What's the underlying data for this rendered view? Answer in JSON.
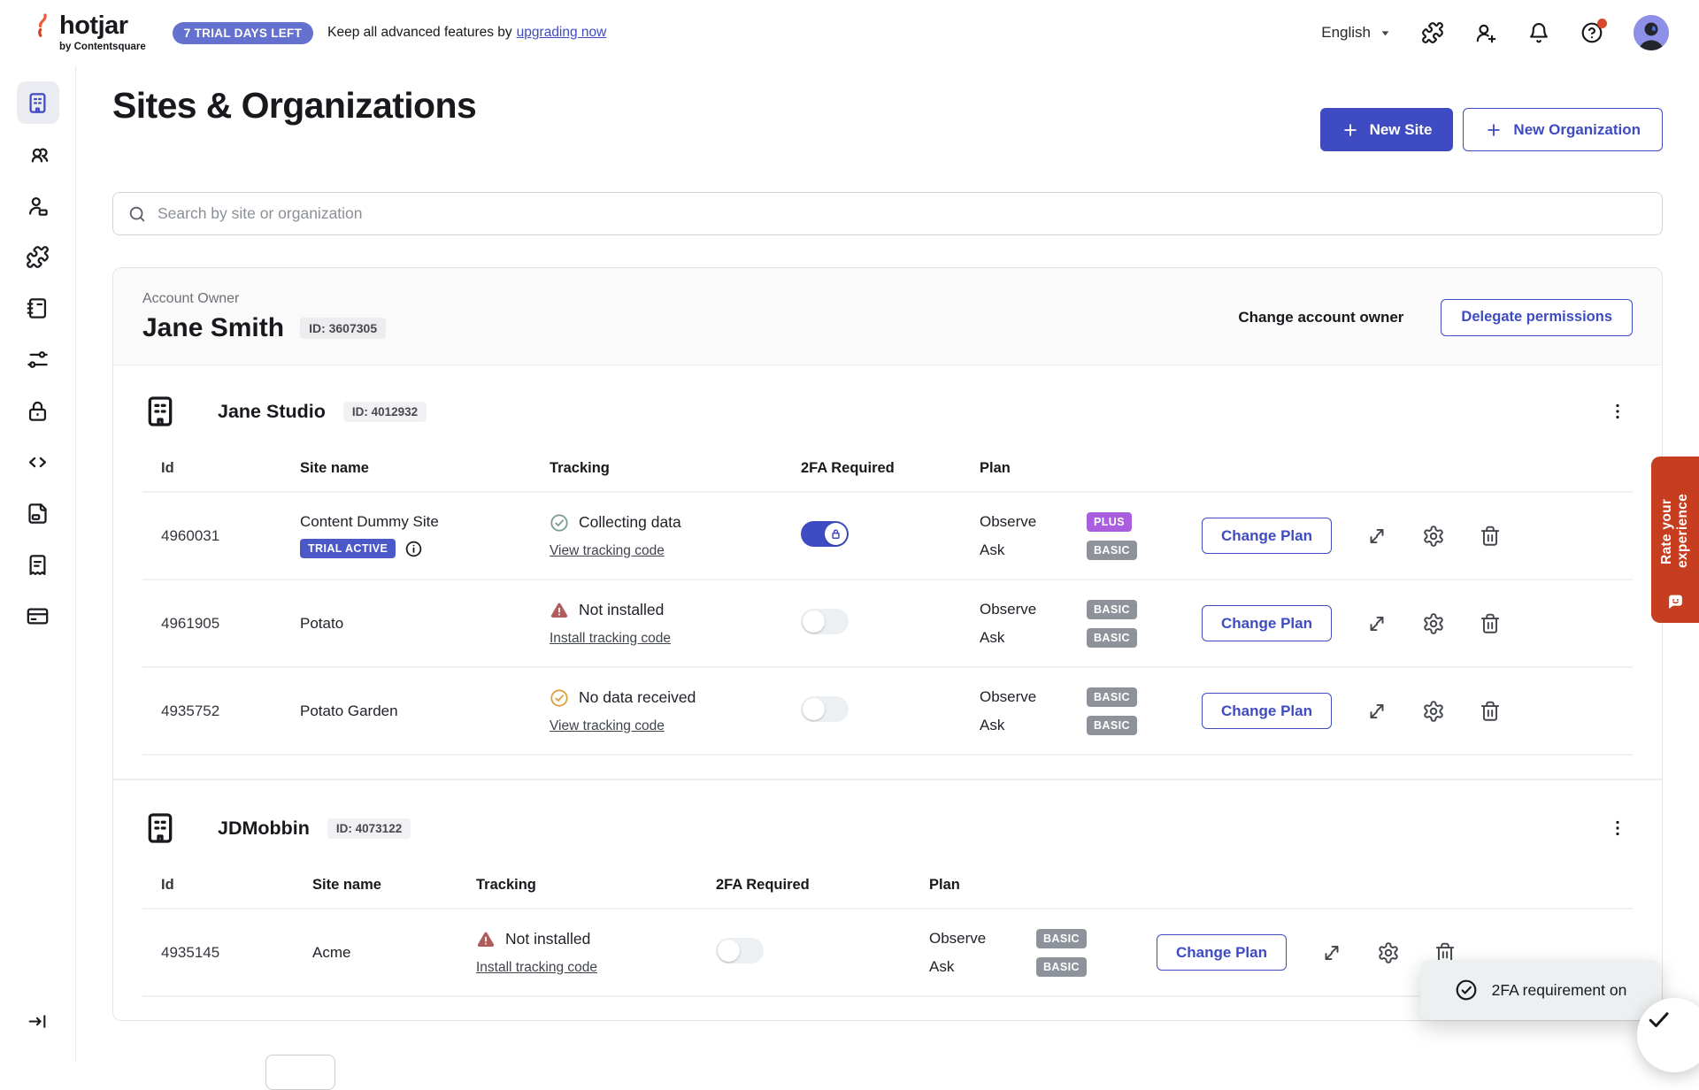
{
  "colors": {
    "accent": "#3e4bc2",
    "trial_badge_bg": "#6471ce",
    "site_badge_bg": "#4b58c8",
    "plus_badge_bg": "#a95ee0",
    "basic_badge_bg": "#8e939b",
    "warning": "#b05c5c",
    "success": "#7d9b8e",
    "no_data": "#df9f3f",
    "rate_tab_bg": "#c63d20",
    "toast_bg": "#edf0f1",
    "avatar_bg": "#8d90e6",
    "help_dot": "#d6492b"
  },
  "topbar": {
    "brand_name": "hotjar",
    "brand_subtitle": "by Contentsquare",
    "trial_badge": "7 TRIAL DAYS LEFT",
    "trial_message": "Keep all advanced features by",
    "trial_link": "upgrading now",
    "language": "English"
  },
  "page": {
    "title": "Sites & Organizations",
    "new_site": "New Site",
    "new_organization": "New Organization",
    "search_placeholder": "Search by site or organization"
  },
  "account_owner": {
    "label": "Account Owner",
    "name": "Jane Smith",
    "id": "ID: 3607305",
    "change_owner": "Change account owner",
    "delegate": "Delegate permissions"
  },
  "table_headers": {
    "id": "Id",
    "site_name": "Site name",
    "tracking": "Tracking",
    "twofa": "2FA Required",
    "plan": "Plan"
  },
  "organizations": [
    {
      "name": "Jane Studio",
      "id": "ID: 4012932",
      "sites": [
        {
          "id": "4960031",
          "name": "Content Dummy Site",
          "badge": "TRIAL ACTIVE",
          "tracking_status": "Collecting data",
          "tracking_state": "collecting",
          "tracking_link": "View tracking code",
          "twofa_on": true,
          "plans": [
            {
              "product": "Observe",
              "tier": "PLUS"
            },
            {
              "product": "Ask",
              "tier": "BASIC"
            }
          ],
          "change_plan": "Change Plan"
        },
        {
          "id": "4961905",
          "name": "Potato",
          "badge": null,
          "tracking_status": "Not installed",
          "tracking_state": "not-installed",
          "tracking_link": "Install tracking code",
          "twofa_on": false,
          "plans": [
            {
              "product": "Observe",
              "tier": "BASIC"
            },
            {
              "product": "Ask",
              "tier": "BASIC"
            }
          ],
          "change_plan": "Change Plan"
        },
        {
          "id": "4935752",
          "name": "Potato Garden",
          "badge": null,
          "tracking_status": "No data received",
          "tracking_state": "no-data",
          "tracking_link": "View tracking code",
          "twofa_on": false,
          "plans": [
            {
              "product": "Observe",
              "tier": "BASIC"
            },
            {
              "product": "Ask",
              "tier": "BASIC"
            }
          ],
          "change_plan": "Change Plan"
        }
      ]
    },
    {
      "name": "JDMobbin",
      "id": "ID: 4073122",
      "sites": [
        {
          "id": "4935145",
          "name": "Acme",
          "badge": null,
          "tracking_status": "Not installed",
          "tracking_state": "not-installed",
          "tracking_link": "Install tracking code",
          "twofa_on": false,
          "plans": [
            {
              "product": "Observe",
              "tier": "BASIC"
            },
            {
              "product": "Ask",
              "tier": "BASIC"
            }
          ],
          "change_plan": "Change Plan"
        }
      ]
    }
  ],
  "toast": {
    "message": "2FA requirement on"
  },
  "rate_tab": {
    "label": "Rate your experience"
  },
  "sidebar": {
    "items": [
      "sites-organizations",
      "team-members",
      "user-management",
      "integrations",
      "organization-directory",
      "preferences",
      "security",
      "tracking-code",
      "documents",
      "billing-receipts",
      "payment-methods"
    ],
    "active": "sites-organizations",
    "bottom": "expand-sidebar"
  }
}
